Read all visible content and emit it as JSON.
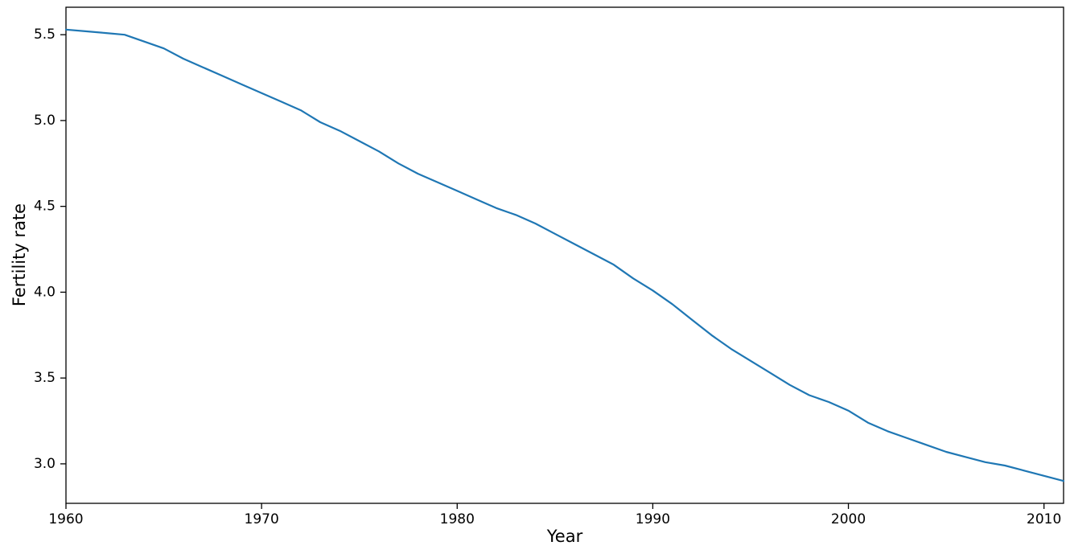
{
  "figure": {
    "background": "#ffffff",
    "frame_color": "#000000",
    "text_color": "#000000"
  },
  "chart_data": {
    "type": "line",
    "title": "",
    "xlabel": "Year",
    "ylabel": "Fertility rate",
    "grid": false,
    "legend": "none",
    "xlim": [
      1960,
      2011
    ],
    "ylim": [
      2.77,
      5.66
    ],
    "xticks": [
      1960,
      1970,
      1980,
      1990,
      2000,
      2010
    ],
    "xtick_labels": [
      "1960",
      "1970",
      "1980",
      "1990",
      "2000",
      "2010"
    ],
    "yticks": [
      3.0,
      3.5,
      4.0,
      4.5,
      5.0,
      5.5
    ],
    "ytick_labels": [
      "3.0",
      "3.5",
      "4.0",
      "4.5",
      "5.0",
      "5.5"
    ],
    "x": [
      1960,
      1961,
      1962,
      1963,
      1964,
      1965,
      1966,
      1967,
      1968,
      1969,
      1970,
      1971,
      1972,
      1973,
      1974,
      1975,
      1976,
      1977,
      1978,
      1979,
      1980,
      1981,
      1982,
      1983,
      1984,
      1985,
      1986,
      1987,
      1988,
      1989,
      1990,
      1991,
      1992,
      1993,
      1994,
      1995,
      1996,
      1997,
      1998,
      1999,
      2000,
      2001,
      2002,
      2003,
      2004,
      2005,
      2006,
      2007,
      2008,
      2009,
      2010,
      2011
    ],
    "series": [
      {
        "name": "Fertility rate",
        "color": "#1f77b4",
        "values": [
          5.53,
          5.52,
          5.51,
          5.5,
          5.46,
          5.42,
          5.36,
          5.31,
          5.26,
          5.21,
          5.16,
          5.11,
          5.06,
          4.99,
          4.94,
          4.88,
          4.82,
          4.75,
          4.69,
          4.64,
          4.59,
          4.54,
          4.49,
          4.45,
          4.4,
          4.34,
          4.28,
          4.22,
          4.16,
          4.08,
          4.01,
          3.93,
          3.84,
          3.75,
          3.67,
          3.6,
          3.53,
          3.46,
          3.4,
          3.36,
          3.31,
          3.24,
          3.19,
          3.15,
          3.11,
          3.07,
          3.04,
          3.01,
          2.99,
          2.96,
          2.93,
          2.9
        ]
      }
    ]
  }
}
